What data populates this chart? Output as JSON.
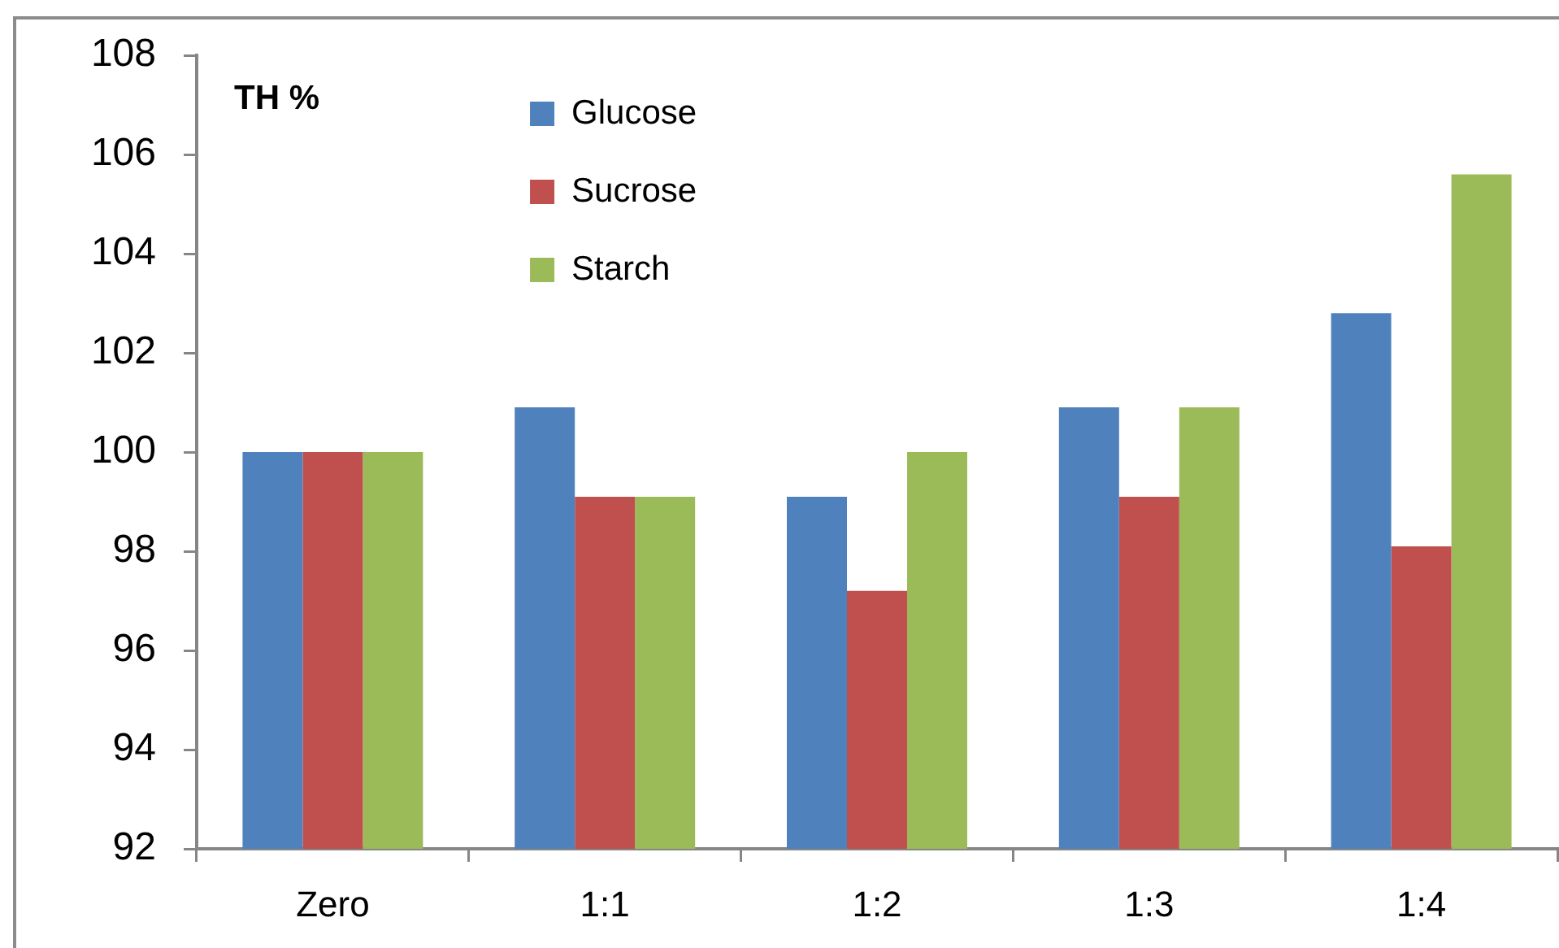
{
  "chart_data": {
    "type": "bar",
    "ylabel": "TH %",
    "categories": [
      "Zero",
      "1:1",
      "1:2",
      "1:3",
      "1:4"
    ],
    "series": [
      {
        "name": "Glucose",
        "color": "#4f81bd",
        "values": [
          100,
          100.9,
          99.1,
          100.9,
          102.8
        ]
      },
      {
        "name": "Sucrose",
        "color": "#c0504d",
        "values": [
          100,
          99.1,
          97.2,
          99.1,
          98.1
        ]
      },
      {
        "name": "Starch",
        "color": "#9bbb59",
        "values": [
          100,
          99.1,
          100,
          100.9,
          105.6
        ]
      }
    ],
    "ylim": [
      92,
      108
    ],
    "yticks": [
      92,
      94,
      96,
      98,
      100,
      102,
      104,
      106,
      108
    ],
    "grid": false,
    "legend": "top left"
  }
}
